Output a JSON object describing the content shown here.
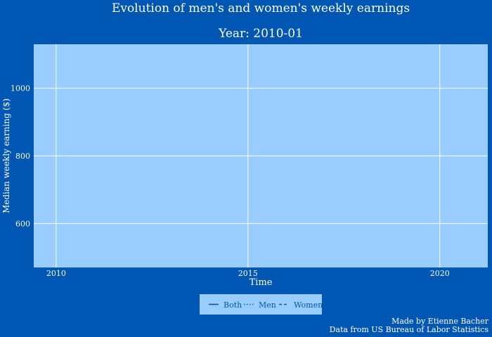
{
  "chart_data": {
    "type": "line",
    "title": "Evolution of men's and women's weekly earnings",
    "subtitle": "Year: 2010-01",
    "xlabel": "Time",
    "ylabel": "Median weekly earning ($)",
    "x_ticks": [
      "2010",
      "2015",
      "2020"
    ],
    "xlim": [
      "2009-06",
      "2021-04"
    ],
    "y_ticks": [
      600,
      800,
      1000
    ],
    "ylim": [
      470,
      1130
    ],
    "grid": true,
    "legend_position": "bottom-center",
    "series": [
      {
        "name": "Both",
        "dash": "solid",
        "x": [],
        "y": []
      },
      {
        "name": "Men",
        "dash": "dot",
        "x": [],
        "y": []
      },
      {
        "name": "Women",
        "dash": "dash",
        "x": [],
        "y": []
      }
    ],
    "annotations": [
      "Made by Etienne Bacher",
      "Data from US Bureau of Labor Statistics"
    ]
  },
  "colors": {
    "page_background": "#0057b3",
    "plot_background": "#99ccff",
    "grid": "#ffffff",
    "text": "#ffffff",
    "tick_text": "#ffffff",
    "legend_background": "#99ccff",
    "legend_text": "#0057b3",
    "series_line": "#0057b3"
  }
}
